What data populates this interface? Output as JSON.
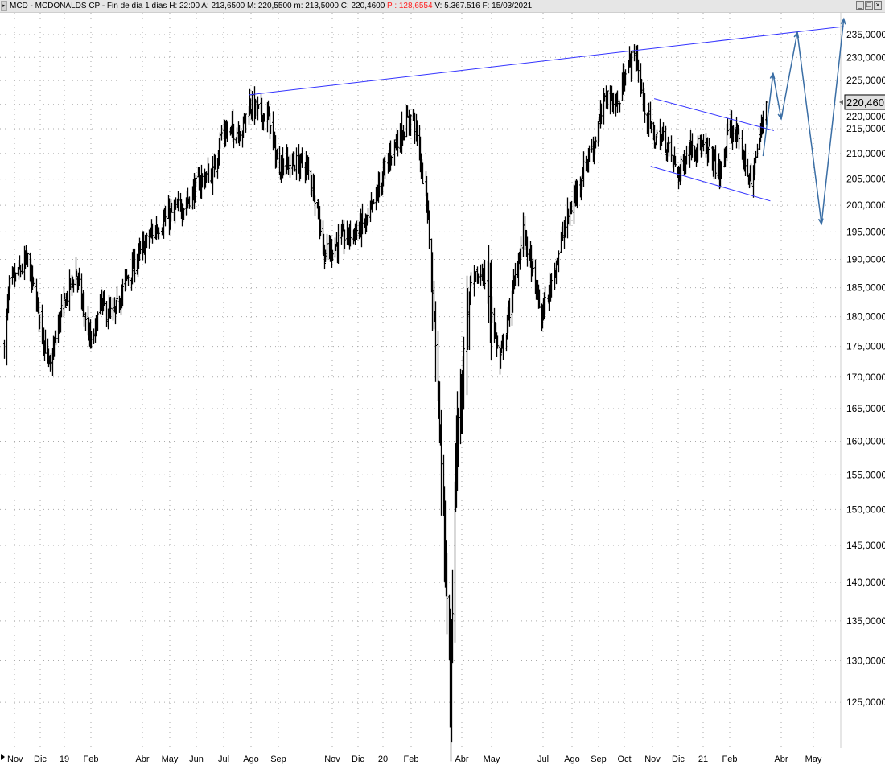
{
  "header": {
    "symbol": "MCD - MCDONALDS CP - Fin de día 1 días",
    "h": "H: 22:00",
    "a": "A: 213,6500",
    "m": "M: 220,5500",
    "min": "m: 213,5000",
    "c": "C: 220,4600",
    "p": "P : 128,6554",
    "v": "V: 5.367.516",
    "f": "F: 15/03/2021",
    "p_color": "#ff2020"
  },
  "window_buttons": [
    "minimize-icon",
    "maximize-icon",
    "close-icon"
  ],
  "chart_data": {
    "type": "ohlc",
    "y_scale": "log",
    "ylim": [
      122,
      239
    ],
    "grid": true,
    "y_ticks": [
      "235,0000",
      "230,0000",
      "225,0000",
      "220,0000",
      "215,0000",
      "210,0000",
      "205,0000",
      "200,0000",
      "195,0000",
      "190,0000",
      "185,0000",
      "180,0000",
      "175,0000",
      "170,0000",
      "165,0000",
      "160,0000",
      "155,0000",
      "150,0000",
      "145,0000",
      "140,0000",
      "135,0000",
      "130,0000",
      "125,0000"
    ],
    "y_tick_values": [
      235,
      230,
      225,
      220,
      215,
      210,
      205,
      200,
      195,
      190,
      185,
      180,
      175,
      170,
      165,
      160,
      155,
      150,
      145,
      140,
      135,
      130,
      125
    ],
    "x_ticks": [
      {
        "date": "2018-11-01",
        "label": "Nov"
      },
      {
        "date": "2018-12-01",
        "label": "Dic"
      },
      {
        "date": "2019-01-01",
        "label": "19"
      },
      {
        "date": "2019-02-01",
        "label": "Feb"
      },
      {
        "date": "2019-04-01",
        "label": "Abr"
      },
      {
        "date": "2019-05-01",
        "label": "May"
      },
      {
        "date": "2019-06-01",
        "label": "Jun"
      },
      {
        "date": "2019-07-01",
        "label": "Jul"
      },
      {
        "date": "2019-08-01",
        "label": "Ago"
      },
      {
        "date": "2019-09-01",
        "label": "Sep"
      },
      {
        "date": "2019-11-01",
        "label": "Nov"
      },
      {
        "date": "2019-12-01",
        "label": "Dic"
      },
      {
        "date": "2020-01-01",
        "label": "20"
      },
      {
        "date": "2020-02-01",
        "label": "Feb"
      },
      {
        "date": "2020-04-01",
        "label": "Abr"
      },
      {
        "date": "2020-05-01",
        "label": "May"
      },
      {
        "date": "2020-07-01",
        "label": "Jul"
      },
      {
        "date": "2020-08-01",
        "label": "Ago"
      },
      {
        "date": "2020-09-01",
        "label": "Sep"
      },
      {
        "date": "2020-10-01",
        "label": "Oct"
      },
      {
        "date": "2020-11-01",
        "label": "Nov"
      },
      {
        "date": "2020-12-01",
        "label": "Dic"
      },
      {
        "date": "2021-01-01",
        "label": "21"
      },
      {
        "date": "2021-02-01",
        "label": "Feb"
      },
      {
        "date": "2021-04-01",
        "label": "Abr"
      },
      {
        "date": "2021-05-01",
        "label": "May"
      }
    ],
    "last_price_label": "220,460",
    "close_path": [
      [
        "2018-10-19",
        175
      ],
      [
        "2018-10-25",
        185
      ],
      [
        "2018-11-16",
        190
      ],
      [
        "2018-11-27",
        182
      ],
      [
        "2018-12-13",
        171
      ],
      [
        "2018-12-26",
        180
      ],
      [
        "2019-01-14",
        188
      ],
      [
        "2019-02-01",
        175
      ],
      [
        "2019-02-11",
        182
      ],
      [
        "2019-02-25",
        180
      ],
      [
        "2019-03-14",
        187
      ],
      [
        "2019-04-12",
        195
      ],
      [
        "2019-04-30",
        198
      ],
      [
        "2019-05-18",
        200
      ],
      [
        "2019-06-06",
        205
      ],
      [
        "2019-06-19",
        206
      ],
      [
        "2019-06-28",
        214
      ],
      [
        "2019-07-22",
        215
      ],
      [
        "2019-07-30",
        220
      ],
      [
        "2019-08-21",
        217
      ],
      [
        "2019-08-30",
        208
      ],
      [
        "2019-09-30",
        208
      ],
      [
        "2019-10-07",
        205
      ],
      [
        "2019-10-14",
        200
      ],
      [
        "2019-10-23",
        191
      ],
      [
        "2019-11-15",
        194
      ],
      [
        "2019-12-13",
        197
      ],
      [
        "2019-12-30",
        205
      ],
      [
        "2020-01-13",
        212
      ],
      [
        "2020-02-03",
        218
      ],
      [
        "2020-02-10",
        210
      ],
      [
        "2020-02-19",
        200
      ],
      [
        "2020-02-24",
        186
      ],
      [
        "2020-02-28",
        176
      ],
      [
        "2020-03-09",
        150
      ],
      [
        "2020-03-18",
        125
      ],
      [
        "2020-03-24",
        158
      ],
      [
        "2020-04-01",
        170
      ],
      [
        "2020-04-09",
        185
      ],
      [
        "2020-04-22",
        188
      ],
      [
        "2020-04-30",
        182
      ],
      [
        "2020-05-11",
        172
      ],
      [
        "2020-05-14",
        175
      ],
      [
        "2020-05-27",
        185
      ],
      [
        "2020-06-08",
        195
      ],
      [
        "2020-06-18",
        188
      ],
      [
        "2020-06-29",
        180
      ],
      [
        "2020-07-08",
        185
      ],
      [
        "2020-07-24",
        196
      ],
      [
        "2020-08-10",
        205
      ],
      [
        "2020-08-28",
        213
      ],
      [
        "2020-09-10",
        222
      ],
      [
        "2020-09-24",
        220
      ],
      [
        "2020-10-02",
        228
      ],
      [
        "2020-10-14",
        230
      ],
      [
        "2020-10-22",
        220
      ],
      [
        "2020-11-02",
        213
      ],
      [
        "2020-11-14",
        213
      ],
      [
        "2020-12-01",
        206
      ],
      [
        "2020-12-18",
        212
      ],
      [
        "2021-01-08",
        210
      ],
      [
        "2021-01-21",
        206
      ],
      [
        "2021-02-01",
        216
      ],
      [
        "2021-02-16",
        210
      ],
      [
        "2021-02-26",
        204
      ],
      [
        "2021-03-08",
        213
      ],
      [
        "2021-03-15",
        220.46
      ]
    ],
    "trendlines": [
      {
        "name": "resistance",
        "color": "#3333ff",
        "points": [
          [
            "2019-07-30",
            222
          ],
          [
            "2021-05-31",
            236.8
          ]
        ]
      },
      {
        "name": "channel-upper",
        "color": "#3333ff",
        "points": [
          [
            "2020-11-03",
            221.2
          ],
          [
            "2021-03-24",
            214.6
          ]
        ]
      },
      {
        "name": "channel-lower",
        "color": "#3333ff",
        "points": [
          [
            "2020-10-30",
            207.5
          ],
          [
            "2021-03-20",
            200.8
          ]
        ]
      }
    ],
    "projection": {
      "color": "#3a6ea5",
      "points": [
        [
          "2021-03-12",
          209.5
        ],
        [
          "2021-03-23",
          226.5
        ],
        [
          "2021-04-01",
          217
        ],
        [
          "2021-04-16",
          235.5
        ],
        [
          "2021-05-09",
          196.5
        ],
        [
          "2021-05-31",
          238.5
        ]
      ]
    }
  }
}
